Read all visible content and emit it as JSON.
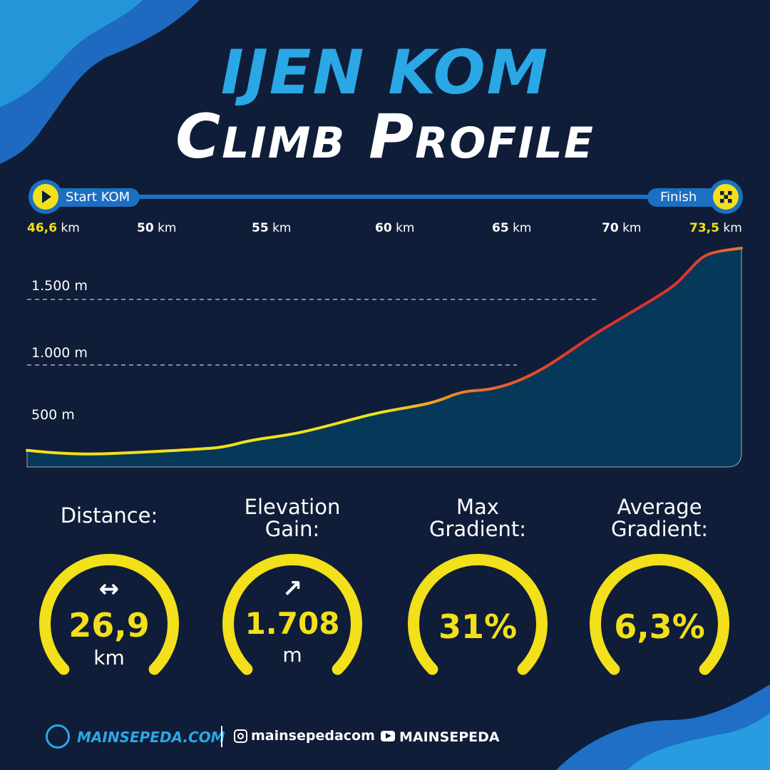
{
  "header": {
    "title_line1": "IJEN KOM",
    "title_line2": "Climb Profile"
  },
  "route": {
    "start_label": "Start KOM",
    "finish_label": "Finish",
    "start_icon": "play-icon",
    "finish_icon": "checkered-flag-icon"
  },
  "chart_data": {
    "type": "area",
    "x_ticks": [
      {
        "value": "46,6",
        "unit": "km",
        "highlight": true
      },
      {
        "value": "50",
        "unit": "km",
        "highlight": false
      },
      {
        "value": "55",
        "unit": "km",
        "highlight": false
      },
      {
        "value": "60",
        "unit": "km",
        "highlight": false
      },
      {
        "value": "65",
        "unit": "km",
        "highlight": false
      },
      {
        "value": "70",
        "unit": "km",
        "highlight": false
      },
      {
        "value": "73,5",
        "unit": "km",
        "highlight": true
      }
    ],
    "y_ticks": [
      "500 m",
      "1.000 m",
      "1.500 m"
    ],
    "y_gridlines": [
      1000,
      1500
    ],
    "xlim": [
      46.6,
      73.5
    ],
    "ylim": [
      100,
      1800
    ],
    "x": [
      46.6,
      47.5,
      49.0,
      51.0,
      53.0,
      54.0,
      55.0,
      56.5,
      57.5,
      59.0,
      60.0,
      61.0,
      62.0,
      63.0,
      64.0,
      65.0,
      66.0,
      67.0,
      68.0,
      69.0,
      70.0,
      71.0,
      71.5,
      72.0,
      72.5,
      73.5
    ],
    "y": [
      240,
      220,
      205,
      225,
      250,
      265,
      325,
      370,
      420,
      510,
      570,
      610,
      660,
      760,
      770,
      840,
      960,
      1100,
      1240,
      1360,
      1480,
      1580,
      1660,
      1740,
      1770,
      1790
    ],
    "gradient_colors": [
      "#f2e01a",
      "#f2e01a",
      "#e8762c",
      "#e0312e",
      "#e0312e",
      "#e8762c"
    ],
    "fill_color": "#06385a"
  },
  "stats": [
    {
      "label": "Distance:",
      "icon": "double-arrow-icon",
      "glyph": "↔",
      "value": "26,9",
      "unit": "km"
    },
    {
      "label": "Elevation Gain:",
      "icon": "arrow-up-right-icon",
      "glyph": "↗",
      "value": "1.708",
      "unit": "m"
    },
    {
      "label": "Max Gradient:",
      "icon": "",
      "glyph": "",
      "value": "31%",
      "unit": ""
    },
    {
      "label": "Average Gradient:",
      "icon": "",
      "glyph": "",
      "value": "6,3%",
      "unit": ""
    }
  ],
  "footer": {
    "brand": "MAINSEPEDA.COM",
    "instagram": "mainsepedacom",
    "youtube": "MAINSEPEDA"
  },
  "colors": {
    "background": "#0f1d38",
    "accent_blue": "#2aa8e6",
    "accent_yellow": "#f2e01a",
    "track_blue": "#1c6fc1"
  }
}
